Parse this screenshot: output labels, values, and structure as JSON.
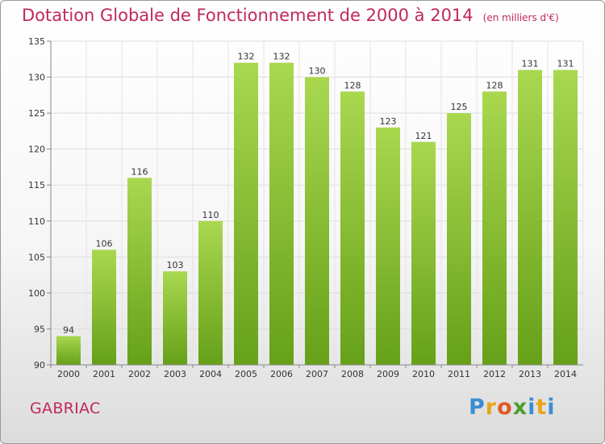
{
  "header": {
    "title": "Dotation Globale de Fonctionnement de 2000 à 2014",
    "subtitle": "(en milliers d'€)"
  },
  "commune_name": "GABRIAC",
  "logo": {
    "text": "Proxiti",
    "letters": [
      "P",
      "r",
      "o",
      "x",
      "i",
      "t",
      "i"
    ]
  },
  "colors": {
    "title": "#c0285f",
    "bar_light": "#a9d84f",
    "bar_dark": "#66a019"
  },
  "chart_data": {
    "type": "bar",
    "title": "Dotation Globale de Fonctionnement de 2000 à 2014",
    "subtitle": "(en milliers d'€)",
    "categories": [
      "2000",
      "2001",
      "2002",
      "2003",
      "2004",
      "2005",
      "2006",
      "2007",
      "2008",
      "2009",
      "2010",
      "2011",
      "2012",
      "2013",
      "2014"
    ],
    "values": [
      94,
      106,
      116,
      103,
      110,
      132,
      132,
      130,
      128,
      123,
      121,
      125,
      128,
      131,
      131
    ],
    "ylim": [
      90,
      135
    ],
    "yticks": [
      90,
      95,
      100,
      105,
      110,
      115,
      120,
      125,
      130,
      135
    ],
    "grid": true,
    "data_labels": true
  }
}
